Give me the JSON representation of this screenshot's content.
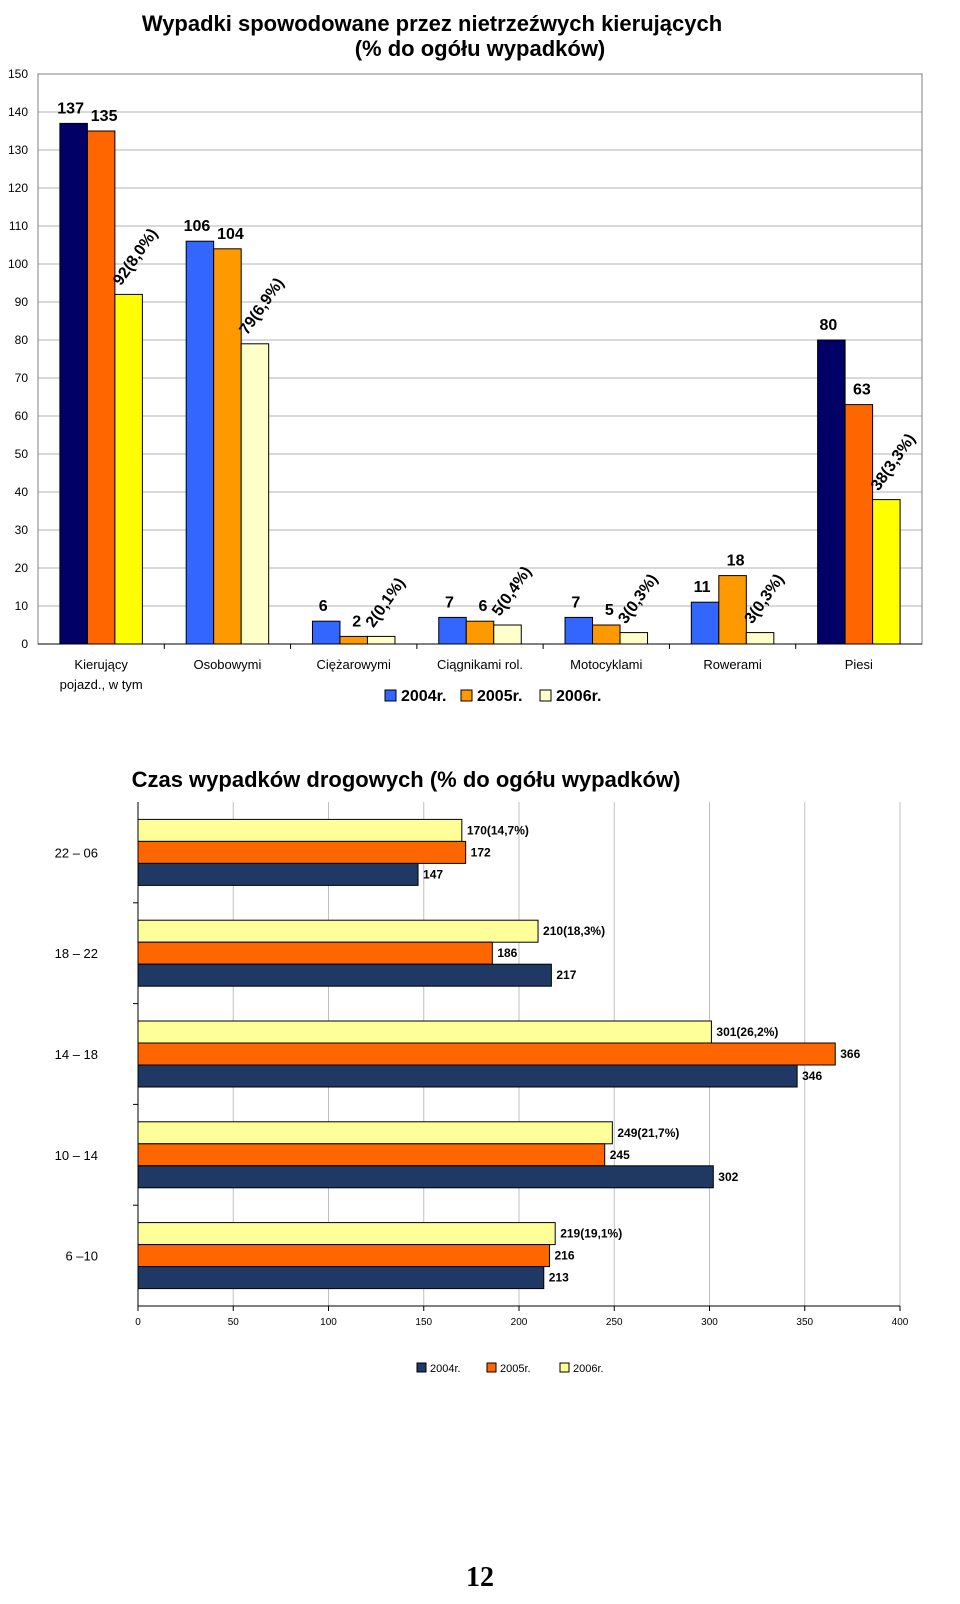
{
  "chart_data": [
    {
      "type": "bar",
      "title": "Wypadki spowodowane przez nietrzeźwych kierujących",
      "subtitle": "(% do ogółu wypadków)",
      "categories": [
        "Kierujący pojazd., w tym",
        "Osobowymi",
        "Ciężarowymi",
        "Ciągnikami rol.",
        "Motocyklami",
        "Rowerami",
        "Piesi"
      ],
      "category_lines": [
        [
          "Kierujący",
          "pojazd., w tym"
        ],
        [
          "Osobowymi"
        ],
        [
          "Ciężarowymi"
        ],
        [
          "Ciągnikami rol."
        ],
        [
          "Motocyklami"
        ],
        [
          "Rowerami"
        ],
        [
          "Piesi"
        ]
      ],
      "series": [
        {
          "name": "2004r.",
          "values": [
            137,
            106,
            6,
            7,
            7,
            11,
            80
          ],
          "labels": [
            "137",
            "106",
            "6",
            "7",
            "7",
            "11",
            "80"
          ]
        },
        {
          "name": "2005r.",
          "values": [
            135,
            104,
            2,
            6,
            5,
            18,
            63
          ],
          "labels": [
            "135",
            "104",
            "2",
            "6",
            "5",
            "18",
            "63"
          ]
        },
        {
          "name": "2006r.",
          "values": [
            92,
            79,
            2,
            5,
            3,
            3,
            38
          ],
          "labels": [
            "92(8,0%)",
            "79(6,9%)",
            "2(0,1%)",
            "5(0,4%)",
            "3(0,3%)",
            "3(0,3%)",
            "38(3,3%)"
          ]
        }
      ],
      "colors_2004": [
        "#000066",
        "#3366ff",
        "#3366ff",
        "#3366ff",
        "#3366ff",
        "#3366ff",
        "#000066"
      ],
      "colors_2005": [
        "#ff6600",
        "#ff9900",
        "#ff9900",
        "#ff9900",
        "#ff9900",
        "#ff9900",
        "#ff6600"
      ],
      "colors_2006": [
        "#ffff00",
        "#ffffcc",
        "#ffffcc",
        "#ffffcc",
        "#ffffcc",
        "#ffffcc",
        "#ffff00"
      ],
      "legend_colors": [
        "#3366ff",
        "#ff9900",
        "#ffffcc"
      ],
      "ylim": [
        0,
        150
      ],
      "yticks": [
        0,
        10,
        20,
        30,
        40,
        50,
        60,
        70,
        80,
        90,
        100,
        110,
        120,
        130,
        140,
        150
      ],
      "grid": true,
      "legend_position": "bottom"
    },
    {
      "type": "bar",
      "orientation": "horizontal",
      "title": "Czas wypadków drogowych (% do ogółu wypadków)",
      "categories": [
        "22 – 06",
        "18 – 22",
        "14 – 18",
        "10 – 14",
        "6 –10"
      ],
      "series": [
        {
          "name": "2004r.",
          "values": [
            147,
            217,
            346,
            302,
            213
          ],
          "labels": [
            "147",
            "217",
            "346",
            "302",
            "213"
          ]
        },
        {
          "name": "2005r.",
          "values": [
            172,
            186,
            366,
            245,
            216
          ],
          "labels": [
            "172",
            "186",
            "366",
            "245",
            "216"
          ]
        },
        {
          "name": "2006r.",
          "values": [
            170,
            210,
            301,
            249,
            219
          ],
          "labels": [
            "170(14,7%)",
            "210(18,3%)",
            "301(26,2%)",
            "249(21,7%)",
            "219(19,1%)"
          ]
        }
      ],
      "colors": [
        "#1f3864",
        "#ff6600",
        "#ffff99"
      ],
      "xlim": [
        0,
        400
      ],
      "xticks": [
        0,
        50,
        100,
        150,
        200,
        250,
        300,
        350,
        400
      ],
      "grid": true,
      "legend_position": "bottom"
    }
  ],
  "page": {
    "number": "12"
  }
}
